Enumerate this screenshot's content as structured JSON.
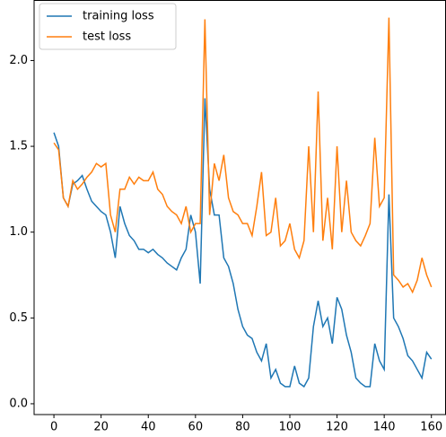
{
  "chart_data": {
    "type": "line",
    "x": [
      0,
      2,
      4,
      6,
      8,
      10,
      12,
      14,
      16,
      18,
      20,
      22,
      24,
      26,
      28,
      30,
      32,
      34,
      36,
      38,
      40,
      42,
      44,
      46,
      48,
      50,
      52,
      54,
      56,
      58,
      60,
      62,
      64,
      66,
      68,
      70,
      72,
      74,
      76,
      78,
      80,
      82,
      84,
      86,
      88,
      90,
      92,
      94,
      96,
      98,
      100,
      102,
      104,
      106,
      108,
      110,
      112,
      114,
      116,
      118,
      120,
      122,
      124,
      126,
      128,
      130,
      132,
      134,
      136,
      138,
      140,
      142,
      144,
      146,
      148,
      150,
      152,
      154,
      156,
      158,
      160
    ],
    "series": [
      {
        "name": "training loss",
        "color": "#1f77b4",
        "values": [
          1.58,
          1.5,
          1.2,
          1.15,
          1.28,
          1.3,
          1.33,
          1.25,
          1.18,
          1.15,
          1.12,
          1.1,
          1.0,
          0.85,
          1.15,
          1.05,
          0.98,
          0.95,
          0.9,
          0.9,
          0.88,
          0.9,
          0.87,
          0.85,
          0.82,
          0.8,
          0.78,
          0.85,
          0.9,
          1.1,
          1.0,
          0.7,
          1.78,
          1.25,
          1.1,
          1.1,
          0.85,
          0.8,
          0.7,
          0.55,
          0.45,
          0.4,
          0.38,
          0.3,
          0.25,
          0.35,
          0.15,
          0.2,
          0.12,
          0.1,
          0.1,
          0.22,
          0.12,
          0.1,
          0.15,
          0.45,
          0.6,
          0.45,
          0.5,
          0.35,
          0.62,
          0.55,
          0.4,
          0.3,
          0.15,
          0.12,
          0.1,
          0.1,
          0.35,
          0.25,
          0.2,
          1.22,
          0.5,
          0.45,
          0.38,
          0.28,
          0.25,
          0.2,
          0.15,
          0.3,
          0.26
        ]
      },
      {
        "name": "test loss",
        "color": "#ff7f0e",
        "values": [
          1.52,
          1.48,
          1.2,
          1.15,
          1.3,
          1.25,
          1.28,
          1.32,
          1.35,
          1.4,
          1.38,
          1.4,
          1.1,
          1.0,
          1.25,
          1.25,
          1.32,
          1.28,
          1.32,
          1.3,
          1.3,
          1.35,
          1.25,
          1.22,
          1.15,
          1.12,
          1.1,
          1.05,
          1.15,
          1.0,
          1.05,
          1.05,
          2.24,
          1.1,
          1.4,
          1.3,
          1.45,
          1.2,
          1.12,
          1.1,
          1.05,
          1.05,
          0.98,
          1.15,
          1.35,
          0.98,
          1.0,
          1.2,
          0.92,
          0.95,
          1.05,
          0.9,
          0.85,
          0.95,
          1.5,
          1.0,
          1.82,
          0.95,
          1.2,
          0.9,
          1.5,
          1.0,
          1.3,
          1.0,
          0.95,
          0.92,
          0.98,
          1.05,
          1.55,
          1.15,
          1.2,
          2.25,
          0.75,
          0.72,
          0.68,
          0.7,
          0.65,
          0.72,
          0.85,
          0.75,
          0.68
        ]
      }
    ],
    "xlim": [
      -8.4,
      166
    ],
    "ylim": [
      -0.063,
      2.35
    ],
    "xticks": [
      0,
      20,
      40,
      60,
      80,
      100,
      120,
      140,
      160
    ],
    "yticks": [
      {
        "value": 0,
        "label": "0.0"
      },
      0.5,
      {
        "value": 1,
        "label": "1.0"
      },
      1.5,
      {
        "value": 2,
        "label": "2.0"
      }
    ],
    "legend": "upper left"
  }
}
